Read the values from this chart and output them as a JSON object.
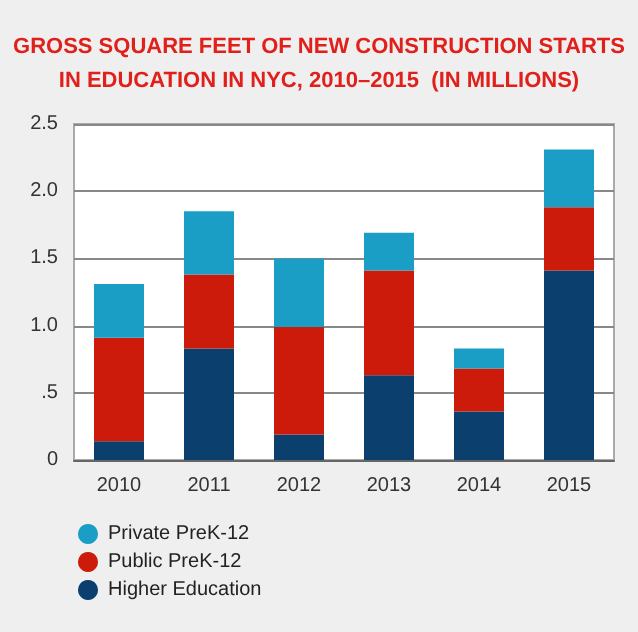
{
  "chart_data": {
    "type": "bar",
    "title": "GROSS SQUARE FEET OF NEW CONSTRUCTION STARTS\nIN EDUCATION IN NYC, 2010–2015  (IN MILLIONS)",
    "categories": [
      "2010",
      "2011",
      "2012",
      "2013",
      "2014",
      "2015"
    ],
    "stacked": true,
    "series": [
      {
        "name": "Higher Education",
        "color": "#0b3f6e",
        "values": [
          0.14,
          0.83,
          0.19,
          0.63,
          0.36,
          1.41
        ]
      },
      {
        "name": "Public PreK-12",
        "color": "#cc1b0b",
        "values": [
          0.77,
          0.55,
          0.8,
          0.78,
          0.32,
          0.47
        ]
      },
      {
        "name": "Private PreK-12",
        "color": "#1a9ec6",
        "values": [
          0.4,
          0.47,
          0.51,
          0.28,
          0.15,
          0.43
        ]
      }
    ],
    "ylim": [
      0,
      2.5
    ],
    "yticks": [
      0,
      {
        "value": 0.5,
        "label": ".5"
      },
      {
        "value": 1,
        "label": "1.0"
      },
      {
        "value": 1.5,
        "label": "1.5"
      },
      {
        "value": 2,
        "label": "2.0"
      },
      {
        "value": 2.5,
        "label": "2.5"
      }
    ],
    "grid": "y",
    "legend": "bottom left"
  }
}
